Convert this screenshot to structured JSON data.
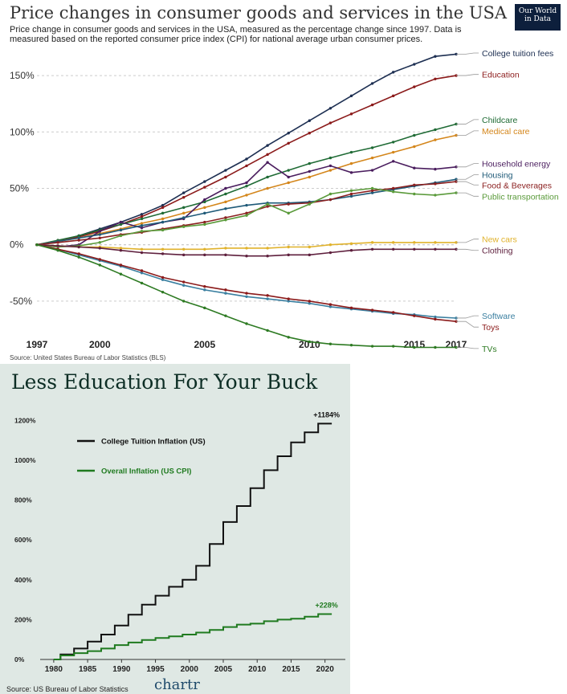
{
  "chart_data": [
    {
      "type": "line",
      "title": "Price changes in consumer goods and services in the USA",
      "subtitle": "Price change in consumer goods and services in the USA, measured as the percentage change since 1997. Data is measured based on the reported consumer price index (CPI) for national average urban consumer prices.",
      "source": "Source: United States Bureau of Labor Statistics (BLS)",
      "logo": [
        "Our World",
        "in Data"
      ],
      "xlabel": "",
      "ylabel": "",
      "xlim": [
        1997,
        2017
      ],
      "ylim": [
        -75,
        170
      ],
      "x_ticks": [
        1997,
        2000,
        2005,
        2010,
        2015,
        2017
      ],
      "y_ticks": [
        150,
        100,
        50,
        0,
        -50
      ],
      "y_tick_labels": [
        "150%",
        "100%",
        "50%",
        "0%",
        "-50%"
      ],
      "grid": "horizontal dashed",
      "legend": "labels at line ends, right",
      "series": [
        {
          "name": "College tuition fees",
          "color": "#1d2f52",
          "label_y": 170,
          "x": [
            1997,
            1998,
            1999,
            2000,
            2001,
            2002,
            2003,
            2004,
            2005,
            2006,
            2007,
            2008,
            2009,
            2010,
            2011,
            2012,
            2013,
            2014,
            2015,
            2016,
            2017
          ],
          "values": [
            0,
            3,
            8,
            14,
            20,
            27,
            35,
            46,
            56,
            66,
            76,
            88,
            99,
            110,
            121,
            132,
            143,
            153,
            160,
            167,
            169
          ]
        },
        {
          "name": "Education",
          "color": "#8b1a1a",
          "label_y": 151,
          "x": [
            1997,
            1998,
            1999,
            2000,
            2001,
            2002,
            2003,
            2004,
            2005,
            2006,
            2007,
            2008,
            2009,
            2010,
            2011,
            2012,
            2013,
            2014,
            2015,
            2016,
            2017
          ],
          "values": [
            0,
            3,
            7,
            12,
            18,
            25,
            33,
            42,
            51,
            60,
            70,
            80,
            90,
            99,
            108,
            116,
            124,
            132,
            140,
            147,
            150
          ]
        },
        {
          "name": "Childcare",
          "color": "#1f6b35",
          "label_y": 111,
          "x": [
            1997,
            1998,
            1999,
            2000,
            2001,
            2002,
            2003,
            2004,
            2005,
            2006,
            2007,
            2008,
            2009,
            2010,
            2011,
            2012,
            2013,
            2014,
            2015,
            2016,
            2017
          ],
          "values": [
            0,
            4,
            8,
            13,
            18,
            23,
            28,
            33,
            38,
            45,
            52,
            60,
            66,
            72,
            77,
            82,
            86,
            91,
            97,
            102,
            107
          ]
        },
        {
          "name": "Medical care",
          "color": "#d4861b",
          "label_y": 101,
          "x": [
            1997,
            1998,
            1999,
            2000,
            2001,
            2002,
            2003,
            2004,
            2005,
            2006,
            2007,
            2008,
            2009,
            2010,
            2011,
            2012,
            2013,
            2014,
            2015,
            2016,
            2017
          ],
          "values": [
            0,
            3,
            6,
            10,
            14,
            19,
            23,
            28,
            33,
            38,
            44,
            50,
            55,
            60,
            66,
            72,
            77,
            82,
            87,
            93,
            97
          ]
        },
        {
          "name": "Household energy",
          "color": "#4a1d5e",
          "label_y": 72,
          "x": [
            1997,
            1998,
            1999,
            2000,
            2001,
            2002,
            2003,
            2004,
            2005,
            2006,
            2007,
            2008,
            2009,
            2010,
            2011,
            2012,
            2013,
            2014,
            2015,
            2016,
            2017
          ],
          "values": [
            0,
            -2,
            0,
            12,
            20,
            15,
            20,
            23,
            40,
            50,
            55,
            73,
            60,
            65,
            70,
            64,
            66,
            74,
            68,
            67,
            69
          ]
        },
        {
          "name": "Housing",
          "color": "#1f5a78",
          "label_y": 62,
          "x": [
            1997,
            1998,
            1999,
            2000,
            2001,
            2002,
            2003,
            2004,
            2005,
            2006,
            2007,
            2008,
            2009,
            2010,
            2011,
            2012,
            2013,
            2014,
            2015,
            2016,
            2017
          ],
          "values": [
            0,
            3,
            6,
            9,
            13,
            17,
            20,
            24,
            28,
            32,
            35,
            37,
            37,
            38,
            40,
            43,
            46,
            49,
            52,
            55,
            58
          ]
        },
        {
          "name": "Food & Beverages",
          "color": "#8b2020",
          "label_y": 53,
          "x": [
            1997,
            1998,
            1999,
            2000,
            2001,
            2002,
            2003,
            2004,
            2005,
            2006,
            2007,
            2008,
            2009,
            2010,
            2011,
            2012,
            2013,
            2014,
            2015,
            2016,
            2017
          ],
          "values": [
            0,
            2,
            4,
            6,
            9,
            11,
            14,
            17,
            20,
            24,
            28,
            34,
            36,
            37,
            40,
            45,
            48,
            50,
            53,
            54,
            56
          ]
        },
        {
          "name": "Public transportation",
          "color": "#5a9a3a",
          "label_y": 43,
          "x": [
            1997,
            1998,
            1999,
            2000,
            2001,
            2002,
            2003,
            2004,
            2005,
            2006,
            2007,
            2008,
            2009,
            2010,
            2011,
            2012,
            2013,
            2014,
            2015,
            2016,
            2017
          ],
          "values": [
            0,
            -2,
            -1,
            2,
            8,
            12,
            13,
            16,
            18,
            22,
            26,
            36,
            28,
            36,
            45,
            48,
            50,
            47,
            45,
            44,
            46
          ]
        },
        {
          "name": "New cars",
          "color": "#e0b22c",
          "label_y": 5,
          "x": [
            1997,
            1998,
            1999,
            2000,
            2001,
            2002,
            2003,
            2004,
            2005,
            2006,
            2007,
            2008,
            2009,
            2010,
            2011,
            2012,
            2013,
            2014,
            2015,
            2016,
            2017
          ],
          "values": [
            0,
            -1,
            -2,
            -2,
            -3,
            -4,
            -4,
            -4,
            -4,
            -3,
            -3,
            -3,
            -2,
            -2,
            0,
            1,
            2,
            2,
            2,
            2,
            2
          ]
        },
        {
          "name": "Clothing",
          "color": "#5e1f3d",
          "label_y": -5,
          "x": [
            1997,
            1998,
            1999,
            2000,
            2001,
            2002,
            2003,
            2004,
            2005,
            2006,
            2007,
            2008,
            2009,
            2010,
            2011,
            2012,
            2013,
            2014,
            2015,
            2016,
            2017
          ],
          "values": [
            0,
            -1,
            -2,
            -3,
            -5,
            -7,
            -8,
            -9,
            -9,
            -9,
            -10,
            -10,
            -9,
            -9,
            -7,
            -5,
            -4,
            -4,
            -4,
            -4,
            -4
          ]
        },
        {
          "name": "Software",
          "color": "#3a7fa0",
          "label_y": -63,
          "x": [
            1997,
            1998,
            1999,
            2000,
            2001,
            2002,
            2003,
            2004,
            2005,
            2006,
            2007,
            2008,
            2009,
            2010,
            2011,
            2012,
            2013,
            2014,
            2015,
            2016,
            2017
          ],
          "values": [
            0,
            -4,
            -9,
            -14,
            -19,
            -25,
            -31,
            -36,
            -40,
            -43,
            -46,
            -48,
            -50,
            -52,
            -55,
            -57,
            -59,
            -61,
            -62,
            -64,
            -65
          ]
        },
        {
          "name": "Toys",
          "color": "#8b1a1a",
          "label_y": -73,
          "x": [
            1997,
            1998,
            1999,
            2000,
            2001,
            2002,
            2003,
            2004,
            2005,
            2006,
            2007,
            2008,
            2009,
            2010,
            2011,
            2012,
            2013,
            2014,
            2015,
            2016,
            2017
          ],
          "values": [
            0,
            -4,
            -8,
            -13,
            -18,
            -23,
            -29,
            -33,
            -37,
            -40,
            -43,
            -45,
            -48,
            -50,
            -53,
            -56,
            -58,
            -60,
            -63,
            -66,
            -68
          ]
        },
        {
          "name": "TVs",
          "color": "#2d7a22",
          "label_y": -92,
          "x": [
            1997,
            1998,
            1999,
            2000,
            2001,
            2002,
            2003,
            2004,
            2005,
            2006,
            2007,
            2008,
            2009,
            2010,
            2011,
            2012,
            2013,
            2014,
            2015,
            2016,
            2017
          ],
          "values": [
            0,
            -5,
            -11,
            -18,
            -26,
            -34,
            -42,
            -50,
            -56,
            -63,
            -70,
            -76,
            -82,
            -86,
            -88,
            -89,
            -90,
            -90,
            -91,
            -91,
            -91
          ]
        }
      ]
    },
    {
      "type": "line",
      "title": "Less Education For Your Buck",
      "source": "Source: US Bureau of Labor Statistics",
      "brand": "chartr",
      "xlim": [
        1978,
        2023
      ],
      "ylim": [
        0,
        1250
      ],
      "x_ticks": [
        1980,
        1985,
        1990,
        1995,
        2000,
        2005,
        2010,
        2015,
        2020
      ],
      "y_ticks": [
        0,
        200,
        400,
        600,
        800,
        1000,
        1200
      ],
      "y_tick_labels": [
        "0%",
        "200%",
        "400%",
        "600%",
        "800%",
        "1000%",
        "1200%"
      ],
      "grid": false,
      "legend": "top-left",
      "annotations": [
        {
          "text": "+1184%",
          "x": 2020,
          "y": 1184
        },
        {
          "text": "+228%",
          "x": 2020,
          "y": 228
        }
      ],
      "series": [
        {
          "name": "College Tuition Inflation (US)",
          "color": "#111111",
          "x": [
            1980,
            1982,
            1984,
            1986,
            1988,
            1990,
            1992,
            1994,
            1996,
            1998,
            2000,
            2002,
            2004,
            2006,
            2008,
            2010,
            2012,
            2014,
            2016,
            2018,
            2020,
            2021
          ],
          "values": [
            0,
            25,
            55,
            90,
            125,
            170,
            225,
            275,
            320,
            365,
            400,
            470,
            580,
            690,
            770,
            860,
            950,
            1020,
            1090,
            1140,
            1184,
            1184
          ]
        },
        {
          "name": "Overall Inflation (US CPI)",
          "color": "#1f7a1f",
          "x": [
            1980,
            1982,
            1984,
            1986,
            1988,
            1990,
            1992,
            1994,
            1996,
            1998,
            2000,
            2002,
            2004,
            2006,
            2008,
            2010,
            2012,
            2014,
            2016,
            2018,
            2020,
            2021
          ],
          "values": [
            0,
            20,
            32,
            42,
            55,
            72,
            85,
            98,
            108,
            116,
            125,
            135,
            148,
            163,
            175,
            180,
            192,
            200,
            205,
            215,
            228,
            228
          ]
        }
      ]
    }
  ]
}
